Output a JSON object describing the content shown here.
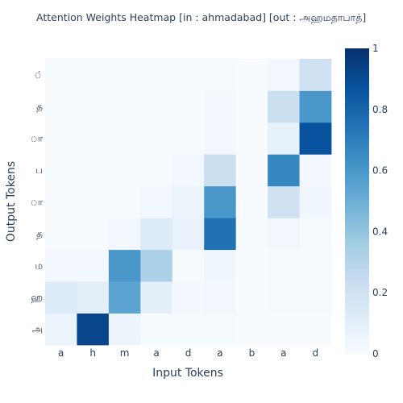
{
  "chart_data": {
    "type": "heatmap",
    "title": "Attention Weights Heatmap [in : ahmadabad] [out : அஹமதாபாத்]",
    "xlabel": "Input Tokens",
    "ylabel": "Output Tokens",
    "x_categories": [
      "a",
      "h",
      "m",
      "a",
      "d",
      "a",
      "b",
      "a",
      "d"
    ],
    "y_categories": [
      "அ",
      "ஹ",
      "ம",
      "த",
      "ா",
      "ப",
      "ா",
      "த",
      "்"
    ],
    "values": [
      [
        0.06,
        0.92,
        0.05,
        0.01,
        0.01,
        0.01,
        0.0,
        0.0,
        0.0
      ],
      [
        0.13,
        0.09,
        0.55,
        0.09,
        0.02,
        0.03,
        0.0,
        0.01,
        0.01
      ],
      [
        0.02,
        0.02,
        0.6,
        0.33,
        0.01,
        0.04,
        0.0,
        0.01,
        0.01
      ],
      [
        0.01,
        0.01,
        0.03,
        0.13,
        0.07,
        0.75,
        0.0,
        0.03,
        0.01
      ],
      [
        0.01,
        0.01,
        0.01,
        0.03,
        0.06,
        0.6,
        0.0,
        0.2,
        0.04
      ],
      [
        0.01,
        0.01,
        0.01,
        0.01,
        0.02,
        0.22,
        0.0,
        0.67,
        0.02
      ],
      [
        0.01,
        0.01,
        0.01,
        0.01,
        0.01,
        0.02,
        0.0,
        0.08,
        0.87
      ],
      [
        0.01,
        0.01,
        0.01,
        0.01,
        0.01,
        0.02,
        0.0,
        0.22,
        0.6
      ],
      [
        0.01,
        0.01,
        0.01,
        0.01,
        0.01,
        0.01,
        0.0,
        0.03,
        0.2
      ]
    ],
    "zlim": [
      0,
      1
    ],
    "colorbar_ticks": [
      "0",
      "0.2",
      "0.4",
      "0.6",
      "0.8",
      "1"
    ],
    "colorscale": [
      "#f7fbff",
      "#deebf7",
      "#c6dbef",
      "#9ecae1",
      "#6baed6",
      "#4292c6",
      "#2171b5",
      "#08519c",
      "#08306b"
    ]
  }
}
